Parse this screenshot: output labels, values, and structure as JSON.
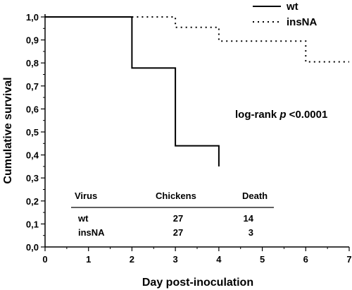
{
  "chart_data": {
    "type": "line",
    "step": true,
    "xlabel": "Day post-inoculation",
    "ylabel": "Cumulative survival",
    "xlim": [
      0,
      7
    ],
    "ylim": [
      0.0,
      1.0
    ],
    "x_ticks": [
      "0",
      "1",
      "2",
      "3",
      "4",
      "5",
      "6",
      "7"
    ],
    "y_ticks": [
      "0,0",
      "0,1",
      "0,2",
      "0,3",
      "0,4",
      "0,5",
      "0,6",
      "0,7",
      "0,8",
      "0,9",
      "1,0"
    ],
    "grid": false,
    "legend_position": "top-right",
    "series": [
      {
        "name": "wt",
        "line_style": "solid",
        "points": [
          [
            0,
            1.0
          ],
          [
            2,
            1.0
          ],
          [
            2,
            0.778
          ],
          [
            3,
            0.778
          ],
          [
            3,
            0.44
          ],
          [
            4,
            0.44
          ],
          [
            4,
            0.35
          ]
        ]
      },
      {
        "name": "insNA",
        "line_style": "dotted",
        "points": [
          [
            2,
            1.0
          ],
          [
            3,
            1.0
          ],
          [
            3,
            0.955
          ],
          [
            4,
            0.955
          ],
          [
            4,
            0.895
          ],
          [
            6,
            0.895
          ],
          [
            6,
            0.805
          ],
          [
            7,
            0.805
          ]
        ]
      }
    ],
    "annotation": {
      "prefix": "log-rank ",
      "italic": "p",
      "suffix": " <0.0001"
    },
    "table": {
      "headers": [
        "Virus",
        "Chickens",
        "Death"
      ],
      "rows": [
        [
          "wt",
          "27",
          "14"
        ],
        [
          "insNA",
          "27",
          "3"
        ]
      ]
    }
  }
}
